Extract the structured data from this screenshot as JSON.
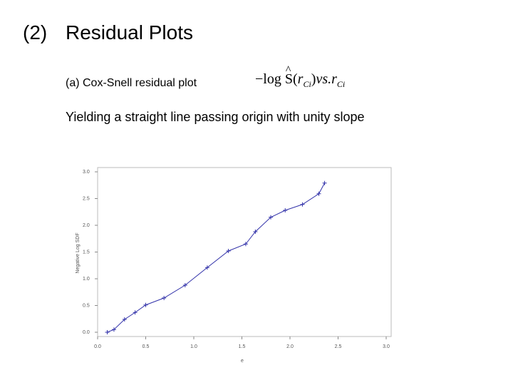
{
  "header": {
    "number": "(2)",
    "title": "Residual Plots"
  },
  "subtitle": "(a) Cox-Snell residual plot",
  "formula": {
    "prefix": "−log",
    "func": "S",
    "open": "(",
    "arg": "r",
    "sub": "Ci",
    "close": ")",
    "mid": "vs.",
    "var": "r",
    "sub2": "Ci"
  },
  "body": "Yielding a straight line passing origin with unity slope",
  "chart_data": {
    "type": "line",
    "x": [
      0.1,
      0.17,
      0.28,
      0.39,
      0.5,
      0.69,
      0.91,
      1.14,
      1.36,
      1.54,
      1.64,
      1.8,
      1.95,
      2.13,
      2.3,
      2.36
    ],
    "series": [
      {
        "name": "Negative Log SDF",
        "color": "#3333aa",
        "values": [
          0.0,
          0.05,
          0.24,
          0.37,
          0.51,
          0.64,
          0.88,
          1.21,
          1.52,
          1.65,
          1.88,
          2.15,
          2.28,
          2.39,
          2.59,
          2.79
        ]
      }
    ],
    "y_label": "Negative Log SDF",
    "x_label": "e",
    "xlim": [
      0,
      3
    ],
    "ylim": [
      0,
      3
    ],
    "xticks": [
      {
        "value": 0,
        "label": "0.0"
      },
      0.5,
      {
        "value": 1,
        "label": "1.0"
      },
      1.5,
      {
        "value": 2,
        "label": "2.0"
      },
      2.5,
      {
        "value": 3,
        "label": "3.0"
      }
    ],
    "yticks": [
      {
        "value": 0,
        "label": "0.0"
      },
      0.5,
      {
        "value": 1,
        "label": "1.0"
      },
      1.5,
      {
        "value": 2,
        "label": "2.0"
      },
      2.5,
      {
        "value": 3,
        "label": "3.0"
      }
    ]
  }
}
